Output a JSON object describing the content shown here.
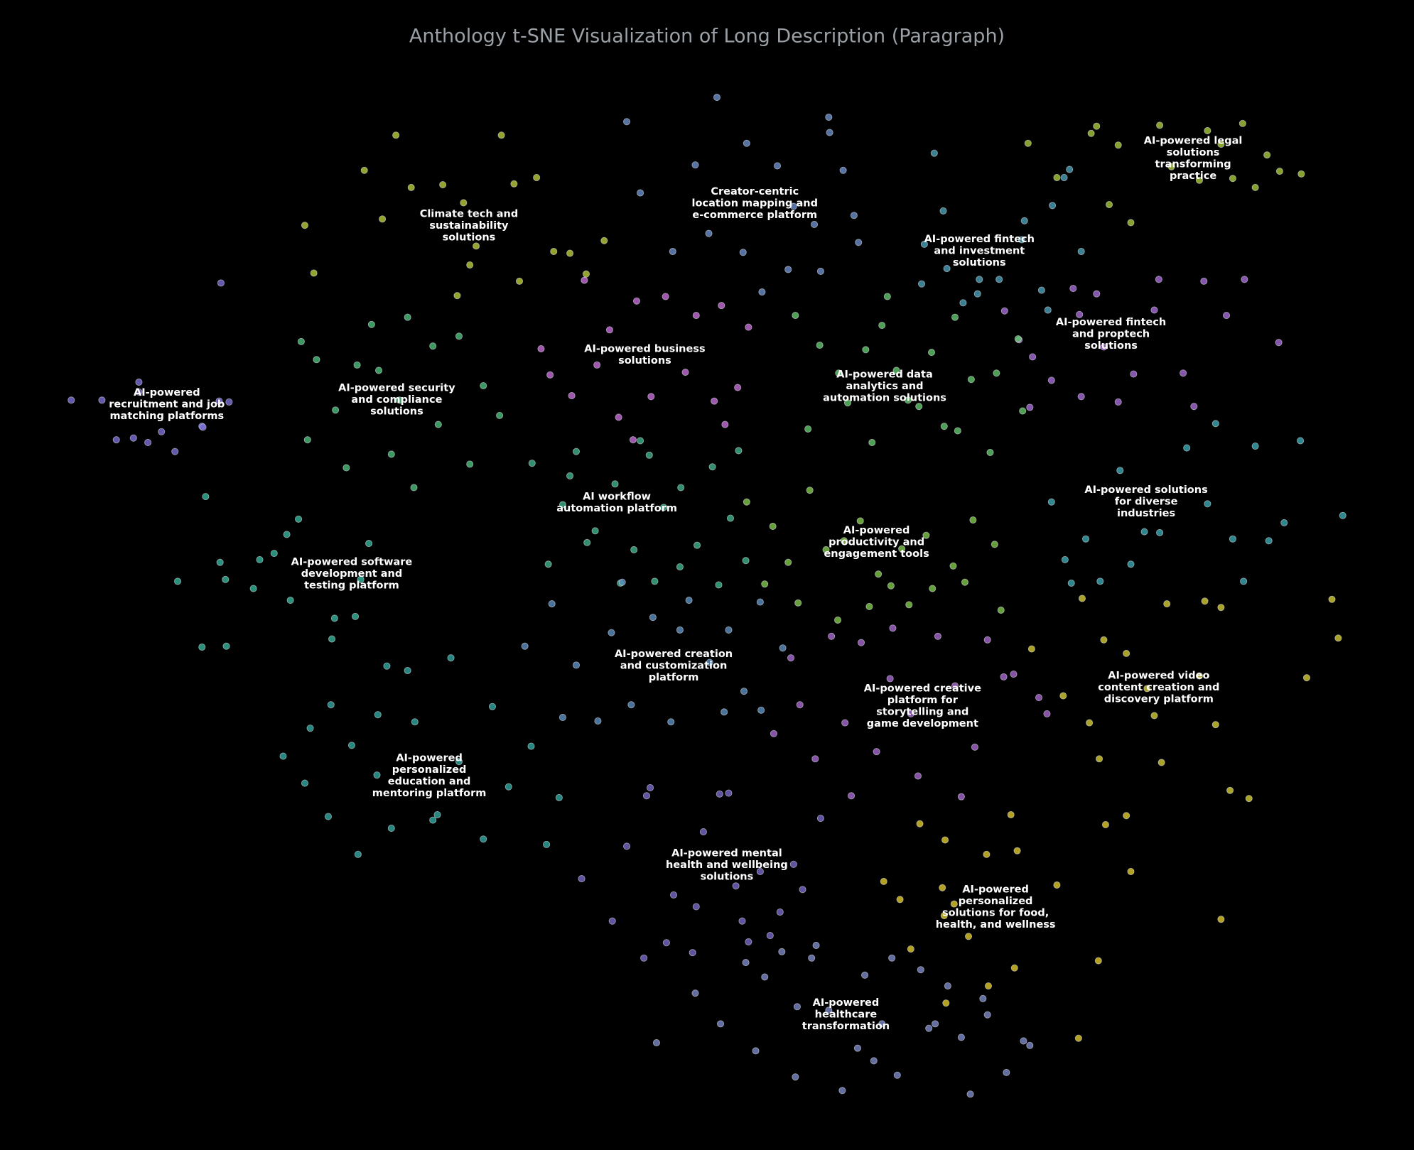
{
  "chart_data": {
    "type": "scatter",
    "title": "Anthology t-SNE Visualization of Long Description (Paragraph)",
    "xlim": [
      -78.4,
      78.4
    ],
    "ylim": [
      -63.6,
      64
    ],
    "background": "#000000",
    "series": [
      {
        "color": "#7a6fd8",
        "x": [
          -70.5,
          -67.1,
          -63.0,
          -65.5,
          -62.0,
          -59.0,
          -56.0,
          -53.0,
          -55.9,
          -60.5,
          -63.6,
          -54.1,
          -53.9,
          -63.0
        ],
        "y": [
          19.6,
          19.6,
          20.5,
          15.2,
          14.9,
          13.9,
          16.7,
          19.4,
          16.6,
          16.1,
          15.4,
          19.5,
          32.6,
          21.6
        ]
      },
      {
        "color": "#4bbf7a",
        "x": [
          -45.0,
          -43.3,
          -41.2,
          -37.2,
          -36.4,
          -34.1,
          -30.4,
          -29.8,
          -27.5,
          -24.8,
          -23.0,
          -40.0,
          -35.0,
          -32.5,
          -26.3,
          -38.8,
          -44.3,
          -33.2
        ],
        "y": [
          26.1,
          24.1,
          18.5,
          28.0,
          22.9,
          19.6,
          25.6,
          16.9,
          26.7,
          21.2,
          17.9,
          12.1,
          13.6,
          9.9,
          12.5,
          23.5,
          15.2,
          28.8
        ]
      },
      {
        "color": "#b8cc38",
        "x": [
          -44.6,
          -43.6,
          -34.5,
          -32.8,
          -29.3,
          -27.0,
          -25.6,
          -22.8,
          -21.4,
          -18.9,
          -17.0,
          -15.2,
          -13.4,
          -11.4,
          -27.7,
          -26.3,
          -38.0,
          -36.0,
          -20.8
        ],
        "y": [
          39.0,
          33.7,
          49.0,
          43.2,
          43.5,
          41.5,
          36.7,
          49.0,
          43.6,
          44.3,
          36.1,
          35.9,
          33.6,
          37.3,
          31.2,
          34.6,
          45.1,
          39.7,
          32.8
        ]
      },
      {
        "color": "#c66dd8",
        "x": [
          -13.6,
          -18.4,
          -10.8,
          -7.8,
          -4.6,
          -1.2,
          1.6,
          4.6,
          -15.0,
          -12.2,
          -9.8,
          -6.2,
          -2.4,
          0.8,
          3.4,
          -17.4,
          -8.2,
          2.0
        ],
        "y": [
          32.9,
          25.3,
          27.4,
          30.6,
          31.1,
          29.0,
          30.1,
          27.7,
          20.1,
          23.5,
          17.7,
          20.0,
          22.7,
          19.5,
          21.0,
          22.4,
          15.2,
          16.9
        ]
      },
      {
        "color": "#6c8fcb",
        "x": [
          1.1,
          -8.9,
          -1.3,
          4.4,
          7.8,
          9.6,
          13.6,
          15.1,
          16.3,
          12.6,
          0.2,
          -3.8,
          4.0,
          9.0,
          11.9,
          16.8,
          -7.4,
          6.1,
          13.5
        ],
        "y": [
          53.2,
          50.5,
          45.7,
          48.1,
          45.6,
          41.1,
          49.3,
          45.1,
          40.1,
          33.9,
          38.1,
          36.1,
          36.0,
          34.1,
          39.1,
          37.1,
          42.6,
          31.6,
          51.0
        ]
      },
      {
        "color": "#4a9fb6",
        "x": [
          25.2,
          24.1,
          26.2,
          30.0,
          30.2,
          34.9,
          35.2,
          37.1,
          38.3,
          40.2,
          41.5,
          28.4,
          32.4,
          37.8,
          23.8,
          26.6,
          39.6
        ],
        "y": [
          47.0,
          36.9,
          40.6,
          31.4,
          33.0,
          37.4,
          39.5,
          31.8,
          41.2,
          45.2,
          36.1,
          30.4,
          33.0,
          29.6,
          32.5,
          34.2,
          44.3
        ]
      },
      {
        "color": "#a9c93b",
        "x": [
          35.6,
          38.8,
          42.6,
          43.2,
          45.6,
          47.0,
          50.2,
          51.5,
          54.6,
          55.5,
          58.3,
          59.4,
          60.8,
          62.1,
          63.5,
          65.9,
          44.6,
          57.0
        ],
        "y": [
          48.1,
          44.3,
          49.2,
          50.0,
          47.9,
          39.3,
          50.1,
          45.5,
          44.0,
          49.5,
          44.2,
          50.3,
          43.2,
          46.8,
          45.0,
          44.7,
          41.3,
          48.0
        ]
      },
      {
        "color": "#a86ad8",
        "x": [
          33.0,
          34.6,
          36.1,
          38.2,
          40.6,
          41.3,
          43.2,
          44.0,
          45.6,
          47.3,
          49.6,
          50.1,
          52.8,
          54.0,
          55.1,
          59.6,
          63.4,
          35.8,
          41.5,
          57.6
        ],
        "y": [
          29.5,
          26.3,
          24.4,
          21.8,
          32.0,
          29.1,
          31.4,
          25.5,
          19.4,
          22.5,
          29.6,
          33.0,
          22.6,
          18.9,
          32.8,
          33.0,
          26.0,
          18.8,
          20.0,
          29.0
        ]
      },
      {
        "color": "#5fc769",
        "x": [
          9.8,
          12.5,
          14.6,
          17.6,
          19.4,
          21.0,
          22.3,
          24.9,
          27.5,
          29.3,
          32.1,
          34.5,
          11.2,
          15.6,
          18.3,
          23.5,
          27.8,
          31.4,
          35.0,
          20.0,
          26.3
        ],
        "y": [
          29.0,
          25.7,
          22.6,
          25.2,
          27.9,
          22.9,
          19.6,
          24.9,
          28.8,
          21.9,
          22.6,
          26.4,
          16.4,
          19.3,
          14.9,
          18.9,
          16.2,
          13.8,
          18.4,
          31.1,
          16.7
        ]
      },
      {
        "color": "#3db38c",
        "x": [
          -19.4,
          -16.0,
          -14.5,
          -12.4,
          -10.2,
          -8.1,
          -6.4,
          -4.8,
          -2.9,
          -1.1,
          0.6,
          2.6,
          4.3,
          -17.6,
          -13.3,
          -9.6,
          -5.8,
          -3.0,
          1.3,
          -15.2,
          -7.4,
          3.5
        ],
        "y": [
          12.6,
          8.0,
          13.9,
          5.1,
          10.3,
          3.0,
          13.5,
          7.7,
          9.9,
          3.5,
          12.2,
          6.5,
          1.8,
          1.4,
          3.8,
          -0.7,
          -0.5,
          1.1,
          -0.9,
          11.2,
          15.1,
          14.0
        ]
      },
      {
        "color": "#33b49a",
        "x": [
          -58.7,
          -54.0,
          -53.4,
          -49.6,
          -48.0,
          -46.6,
          -45.3,
          -41.3,
          -39.0,
          -37.5,
          -50.3,
          -53.3,
          -56.0,
          -41.6,
          -38.4,
          -46.2,
          -55.6
        ],
        "y": [
          -0.5,
          1.6,
          -0.3,
          1.9,
          2.6,
          4.7,
          6.4,
          -4.6,
          -4.4,
          3.7,
          -1.3,
          -7.7,
          -7.8,
          -6.9,
          -0.3,
          -2.6,
          8.9
        ]
      },
      {
        "color": "#3aa7b2",
        "x": [
          38.2,
          39.7,
          42.0,
          43.6,
          45.8,
          48.5,
          50.2,
          53.2,
          55.5,
          58.3,
          59.5,
          62.3,
          64.0,
          65.8,
          70.5,
          40.4,
          47.0,
          56.4,
          60.8
        ],
        "y": [
          8.3,
          1.9,
          4.2,
          -0.5,
          11.8,
          5.0,
          4.9,
          14.3,
          8.1,
          4.2,
          -0.5,
          4.0,
          6.0,
          15.1,
          6.8,
          -0.7,
          1.4,
          17.0,
          14.5
        ]
      },
      {
        "color": "#80c84a",
        "x": [
          4.4,
          7.3,
          9.0,
          11.4,
          13.2,
          15.2,
          17.0,
          19.0,
          21.6,
          22.4,
          24.3,
          27.3,
          29.5,
          31.9,
          6.4,
          10.1,
          14.5,
          18.0,
          20.4,
          25.0,
          28.6,
          32.6
        ],
        "y": [
          8.3,
          5.6,
          1.6,
          9.6,
          3.0,
          4.0,
          6.2,
          0.3,
          3.1,
          -3.1,
          4.6,
          1.2,
          6.3,
          3.6,
          -0.8,
          -2.9,
          -4.8,
          -3.3,
          -1.0,
          -1.3,
          -0.6,
          -3.7
        ]
      },
      {
        "color": "#5d90c2",
        "x": [
          -20.2,
          -17.2,
          -14.5,
          -10.6,
          -8.4,
          -6.0,
          -4.0,
          -2.0,
          0.3,
          2.4,
          4.1,
          5.9,
          8.4,
          -12.1,
          -3.0,
          1.9,
          -9.4,
          6.0,
          -16.0
        ],
        "y": [
          -7.7,
          -3.0,
          -9.8,
          -6.2,
          -14.2,
          -4.5,
          -16.1,
          -2.6,
          -9.5,
          -5.9,
          -12.7,
          -2.8,
          -7.9,
          -16.0,
          -5.9,
          -15.0,
          -0.6,
          -14.8,
          -15.6
        ]
      },
      {
        "color": "#a868d0",
        "x": [
          7.4,
          10.3,
          12.0,
          15.3,
          17.1,
          18.8,
          20.3,
          22.6,
          25.6,
          27.5,
          29.7,
          31.1,
          34.0,
          36.8,
          9.3,
          13.8,
          16.0,
          23.4,
          28.2,
          32.9,
          37.7,
          20.6
        ],
        "y": [
          -17.4,
          -14.2,
          -20.2,
          -16.2,
          -7.3,
          -19.4,
          -11.3,
          -15.2,
          -6.6,
          -12.1,
          -18.9,
          -7.0,
          -10.8,
          -13.4,
          -9.0,
          -6.6,
          -24.3,
          -22.1,
          -24.4,
          -11.1,
          -15.2,
          -5.7
        ]
      },
      {
        "color": "#d3cc33",
        "x": [
          36.0,
          39.5,
          41.6,
          44.0,
          46.5,
          49.6,
          51.0,
          54.6,
          56.4,
          48.8,
          43.5,
          57.0,
          55.2,
          60.1,
          66.5,
          70.0,
          69.3,
          58.0,
          42.4,
          50.4
        ],
        "y": [
          -8.0,
          -13.2,
          -2.4,
          -7.0,
          -8.5,
          -15.4,
          -3.0,
          -11.0,
          -16.4,
          -12.4,
          -20.2,
          -3.4,
          -2.7,
          -24.6,
          -11.2,
          -6.8,
          -2.5,
          -23.7,
          -16.2,
          -20.6
        ]
      },
      {
        "color": "#2fa8a0",
        "x": [
          -47.0,
          -44.6,
          -42.0,
          -39.4,
          -36.6,
          -35.0,
          -32.4,
          -29.9,
          -27.5,
          -24.8,
          -22.0,
          -19.5,
          -17.8,
          -16.4,
          -41.7,
          -38.7,
          -33.2,
          -28.4,
          -23.8,
          -36.5,
          -30.4,
          -44.0,
          -35.5
        ],
        "y": [
          -19.9,
          -22.9,
          -26.6,
          -18.7,
          -22.0,
          -27.9,
          -16.1,
          -26.4,
          -20.5,
          -29.1,
          -23.3,
          -18.8,
          -29.7,
          -24.5,
          -14.2,
          -30.8,
          -10.4,
          -9.0,
          -14.4,
          -15.3,
          -27.0,
          -16.8,
          -9.9
        ]
      },
      {
        "color": "#7868c8",
        "x": [
          -13.9,
          -8.9,
          -6.7,
          -3.7,
          -1.2,
          1.4,
          3.9,
          5.9,
          8.1,
          10.6,
          12.6,
          -7.0,
          -4.5,
          -1.6,
          2.4,
          4.6,
          7.0,
          -10.5,
          -0.4,
          9.6,
          -6.3,
          3.2
        ],
        "y": [
          -33.5,
          -29.9,
          -24.3,
          -35.3,
          -36.6,
          -24.1,
          -38.2,
          -32.7,
          -37.2,
          -34.7,
          -26.8,
          -42.3,
          -40.6,
          -41.7,
          -24.0,
          -40.5,
          -39.8,
          -38.2,
          -28.3,
          -31.9,
          -23.4,
          -34.3
        ]
      },
      {
        "color": "#e0c92b",
        "x": [
          19.6,
          21.4,
          23.6,
          26.1,
          26.4,
          27.4,
          29.0,
          31.2,
          33.7,
          34.4,
          38.8,
          41.2,
          26.5,
          31.0,
          34.1,
          43.4,
          47.0,
          57.0,
          44.2,
          46.5,
          22.6,
          26.3
        ],
        "y": [
          -33.8,
          -35.8,
          -27.4,
          -34.5,
          -29.2,
          -36.3,
          -39.9,
          -45.4,
          -26.4,
          -30.4,
          -34.2,
          -51.2,
          -47.3,
          -30.8,
          -43.4,
          -42.6,
          -32.7,
          -38.0,
          -27.5,
          -26.5,
          -41.3,
          -37.6
        ]
      },
      {
        "color": "#7a88c8",
        "x": [
          -5.6,
          -1.3,
          1.5,
          5.4,
          6.4,
          9.8,
          11.6,
          13.5,
          15.0,
          17.5,
          19.4,
          21.1,
          23.7,
          24.6,
          26.7,
          28.2,
          29.2,
          31.1,
          33.2,
          35.1,
          8.3,
          12.1,
          16.7,
          20.5,
          25.3,
          30.6,
          35.8,
          10.0,
          18.5,
          4.3
        ],
        "y": [
          -51.7,
          -46.2,
          -49.6,
          -52.6,
          -44.4,
          -55.5,
          -42.3,
          -48.1,
          -57.0,
          -44.2,
          -49.6,
          -55.3,
          -43.6,
          -50.1,
          -45.4,
          -51.1,
          -57.4,
          -48.6,
          -55.0,
          -51.5,
          -41.6,
          -40.9,
          -52.3,
          -42.3,
          -49.6,
          -46.8,
          -52.0,
          -47.7,
          -53.7,
          -42.8
        ]
      }
    ],
    "annotations": [
      {
        "x": -59.9,
        "y": 19.2,
        "lines": [
          "AI-powered",
          "recruitment and job",
          "matching platforms"
        ]
      },
      {
        "x": -34.4,
        "y": 19.7,
        "lines": [
          "AI-powered security",
          "and compliance",
          "solutions"
        ]
      },
      {
        "x": -26.4,
        "y": 39.0,
        "lines": [
          "Climate tech and",
          "sustainability",
          "solutions"
        ]
      },
      {
        "x": -6.9,
        "y": 24.7,
        "lines": [
          "AI-powered business",
          "solutions"
        ]
      },
      {
        "x": 5.3,
        "y": 41.5,
        "lines": [
          "Creator-centric",
          "location mapping and",
          "e-commerce platform"
        ]
      },
      {
        "x": 30.2,
        "y": 36.2,
        "lines": [
          "AI-powered fintech",
          "and investment",
          "solutions"
        ]
      },
      {
        "x": 53.9,
        "y": 46.5,
        "lines": [
          "AI-powered legal",
          "solutions",
          "transforming",
          "practice"
        ]
      },
      {
        "x": 44.8,
        "y": 27.0,
        "lines": [
          "AI-powered fintech",
          "and proptech",
          "solutions"
        ]
      },
      {
        "x": 19.7,
        "y": 21.2,
        "lines": [
          "AI-powered data",
          "analytics and",
          "automation solutions"
        ]
      },
      {
        "x": -10.0,
        "y": 8.3,
        "lines": [
          "AI workflow",
          "automation platform"
        ]
      },
      {
        "x": -39.4,
        "y": 0.4,
        "lines": [
          "AI-powered software",
          "development and",
          "testing platform"
        ]
      },
      {
        "x": 48.7,
        "y": 8.4,
        "lines": [
          "AI-powered solutions",
          "for diverse",
          "industries"
        ]
      },
      {
        "x": 18.8,
        "y": 3.9,
        "lines": [
          "AI-powered",
          "productivity and",
          "engagement tools"
        ]
      },
      {
        "x": -3.7,
        "y": -9.8,
        "lines": [
          "AI-powered creation",
          "and customization",
          "platform"
        ]
      },
      {
        "x": 23.9,
        "y": -14.3,
        "lines": [
          "AI-powered creative",
          "platform for",
          "storytelling and",
          "game development"
        ]
      },
      {
        "x": 50.1,
        "y": -12.2,
        "lines": [
          "AI-powered video",
          "content creation and",
          "discovery platform"
        ]
      },
      {
        "x": -30.8,
        "y": -22.0,
        "lines": [
          "AI-powered",
          "personalized",
          "education and",
          "mentoring platform"
        ]
      },
      {
        "x": 2.2,
        "y": -31.9,
        "lines": [
          "AI-powered mental",
          "health and wellbeing",
          "solutions"
        ]
      },
      {
        "x": 32.0,
        "y": -36.6,
        "lines": [
          "AI-powered",
          "personalized",
          "solutions for food,",
          "health, and wellness"
        ]
      },
      {
        "x": 15.4,
        "y": -48.5,
        "lines": [
          "AI-powered",
          "healthcare",
          "transformation"
        ]
      }
    ]
  }
}
